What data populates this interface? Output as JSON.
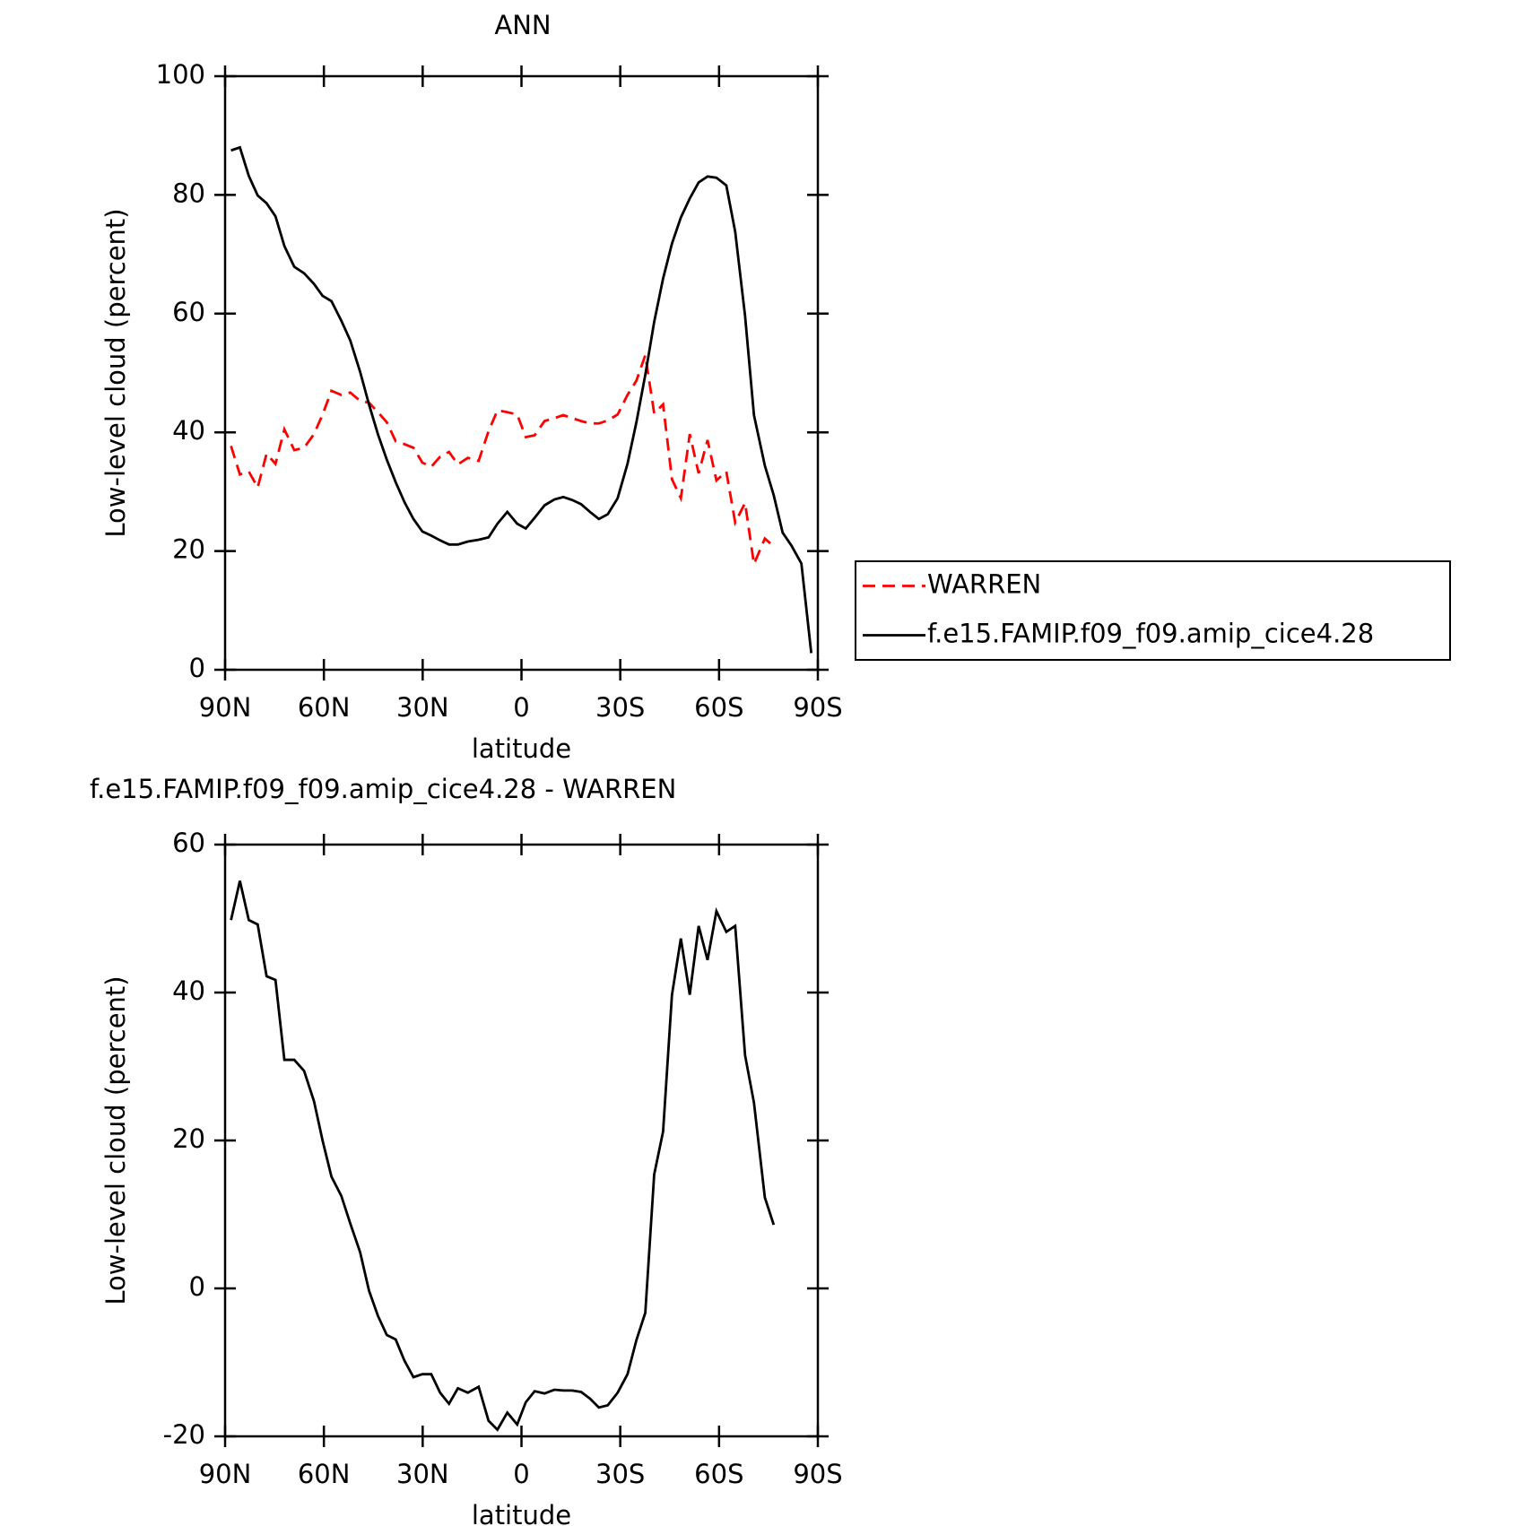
{
  "chart_data": [
    {
      "type": "line",
      "title": "ANN",
      "xlabel": "latitude",
      "ylabel": "Low-level cloud (percent)",
      "x": [
        88.2,
        85.5,
        82.8,
        80.1,
        77.4,
        74.7,
        72,
        69,
        66,
        63,
        60.4,
        57.7,
        54.7,
        52,
        49,
        46.3,
        43.6,
        40.9,
        38.2,
        35.5,
        32.8,
        30.1,
        27.4,
        24.7,
        22,
        19.3,
        16.3,
        13,
        10,
        7.3,
        4.3,
        1.3,
        -1.3,
        -4,
        -7,
        -10,
        -12.7,
        -15.4,
        -18.1,
        -20.8,
        -23.5,
        -26.2,
        -29.2,
        -32.2,
        -34.9,
        -37.6,
        -40.3,
        -43,
        -45.7,
        -48.4,
        -51.1,
        -53.8,
        -56.5,
        -59.2,
        -62.2,
        -64.9,
        -67.9,
        -70.6,
        -73.9,
        -76.6,
        -79.3,
        -82,
        -85,
        -88
      ],
      "series": [
        {
          "name": "WARREN",
          "color": "#ff0000",
          "dash": true,
          "values": [
            37.7,
            32.9,
            33.4,
            30.7,
            36.4,
            34.7,
            40.5,
            37,
            37.4,
            39.7,
            43,
            47,
            46.3,
            46.7,
            45.3,
            45,
            43.4,
            41.7,
            38.5,
            38,
            37.4,
            34.9,
            34.2,
            35.9,
            36.7,
            34.6,
            35.7,
            35.2,
            40.2,
            43.7,
            43.4,
            43,
            39.2,
            39.5,
            41.9,
            42.4,
            42.9,
            42.4,
            41.9,
            41.5,
            41.5,
            42,
            43,
            46.3,
            48.7,
            53,
            43.2,
            44.7,
            32.1,
            28.9,
            39.7,
            33.1,
            38.7,
            31.9,
            33.4,
            24.8,
            28.1,
            17.8,
            22.1,
            20.8,
            null,
            null,
            null,
            null
          ]
        },
        {
          "name": "f.e15.FAMIP.f09_f09.amip_cice4.28",
          "color": "#000000",
          "dash": false,
          "values": [
            87.5,
            88,
            83.2,
            79.9,
            78.6,
            76.4,
            71.4,
            67.9,
            66.8,
            65,
            63,
            62.1,
            58.8,
            55.5,
            50.2,
            44.7,
            39.7,
            35.4,
            31.6,
            28.2,
            25.4,
            23.3,
            22.6,
            21.8,
            21.1,
            21.1,
            21.6,
            21.9,
            22.3,
            24.6,
            26.6,
            24.6,
            23.8,
            25.6,
            27.7,
            28.7,
            29.1,
            28.6,
            27.9,
            26.6,
            25.4,
            26.2,
            28.9,
            34.7,
            41.7,
            49.7,
            58.6,
            65.9,
            71.8,
            76.2,
            79.4,
            82.1,
            83.1,
            82.9,
            81.6,
            73.8,
            59.6,
            42.9,
            34.4,
            29.4,
            23.1,
            20.9,
            17.9,
            2.8
          ]
        }
      ],
      "xlim": [
        90,
        -90
      ],
      "xticks": [
        {
          "value": 90,
          "label": "90N"
        },
        {
          "value": 60,
          "label": "60N"
        },
        {
          "value": 30,
          "label": "30N"
        },
        0,
        {
          "value": -30,
          "label": "30S"
        },
        {
          "value": -60,
          "label": "60S"
        },
        {
          "value": -90,
          "label": "90S"
        }
      ],
      "ylim": [
        0,
        100
      ],
      "yticks": [
        0,
        20,
        40,
        60,
        80,
        100
      ],
      "legend": "right"
    },
    {
      "type": "line",
      "title": "f.e15.FAMIP.f09_f09.amip_cice4.28 - WARREN",
      "xlabel": "latitude",
      "ylabel": "Low-level cloud (percent)",
      "x": [
        88.2,
        85.5,
        82.8,
        80.1,
        77.4,
        74.7,
        72,
        69,
        66,
        63,
        60.4,
        57.7,
        54.7,
        52,
        49,
        46.3,
        43.6,
        40.9,
        38.2,
        35.5,
        32.8,
        30.1,
        27.4,
        24.7,
        22,
        19.3,
        16.3,
        13,
        10,
        7.3,
        4.3,
        1.3,
        -1.3,
        -4,
        -7,
        -10,
        -12.7,
        -15.4,
        -18.1,
        -20.8,
        -23.5,
        -26.2,
        -29.2,
        -32.2,
        -34.9,
        -37.6,
        -40.3,
        -43,
        -45.7,
        -48.4,
        -51.1,
        -53.8,
        -56.5,
        -59.2,
        -62.2,
        -64.9,
        -67.9,
        -70.6,
        -73.9,
        -76.6,
        -79.3,
        -82,
        -85,
        -88
      ],
      "values": [
        49.8,
        55.1,
        49.8,
        49.2,
        42.2,
        41.7,
        30.9,
        30.9,
        29.4,
        25.3,
        20,
        15.1,
        12.5,
        8.8,
        4.9,
        -0.3,
        -3.7,
        -6.3,
        -6.9,
        -9.8,
        -12,
        -11.6,
        -11.6,
        -14.1,
        -15.6,
        -13.5,
        -14.1,
        -13.3,
        -17.9,
        -19.1,
        -16.8,
        -18.4,
        -15.4,
        -13.9,
        -14.2,
        -13.7,
        -13.8,
        -13.8,
        -14,
        -14.9,
        -16.1,
        -15.8,
        -14.1,
        -11.6,
        -7,
        -3.3,
        15.4,
        21.2,
        39.7,
        47.3,
        39.7,
        49,
        44.4,
        51,
        48.2,
        49,
        31.5,
        25.1,
        12.3,
        8.6,
        null,
        null,
        null,
        null
      ],
      "color": "#000000",
      "xlim": [
        90,
        -90
      ],
      "xticks": [
        {
          "value": 90,
          "label": "90N"
        },
        {
          "value": 60,
          "label": "60N"
        },
        {
          "value": 30,
          "label": "30N"
        },
        0,
        {
          "value": -30,
          "label": "30S"
        },
        {
          "value": -60,
          "label": "60S"
        },
        {
          "value": -90,
          "label": "90S"
        }
      ],
      "ylim": [
        -20,
        60
      ],
      "yticks": [
        -20,
        0,
        20,
        40,
        60
      ]
    }
  ]
}
